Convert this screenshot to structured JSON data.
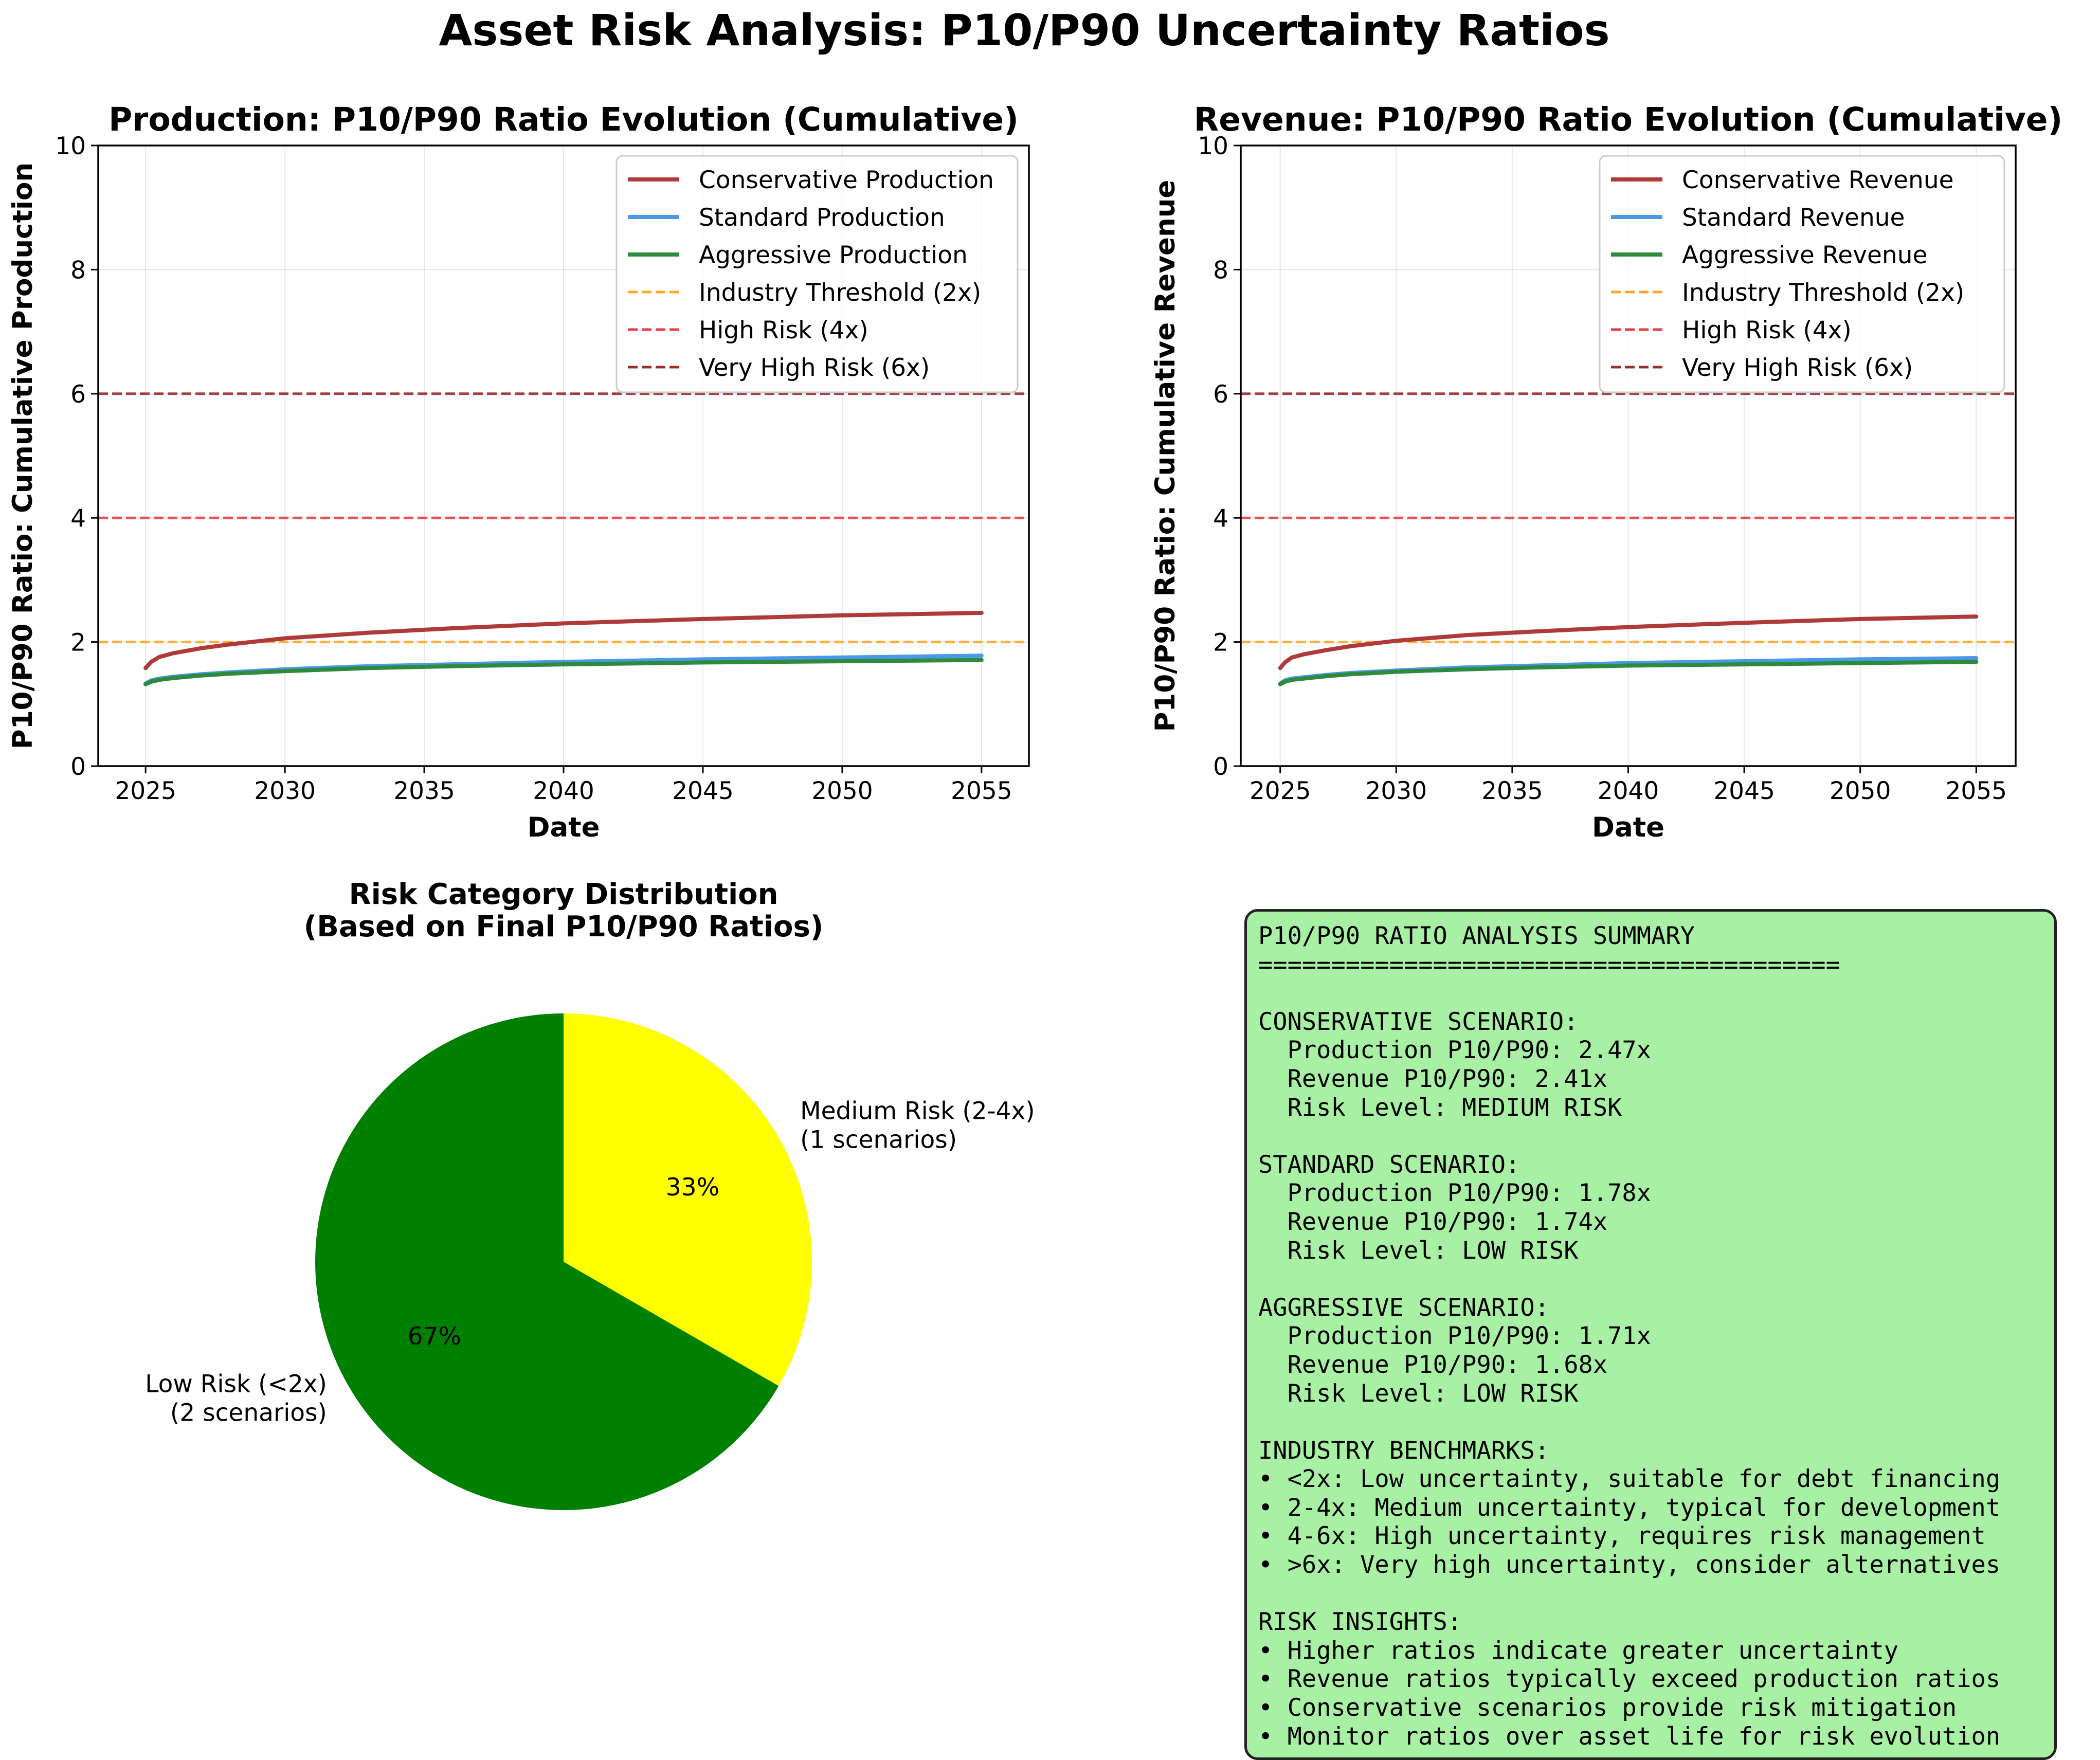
{
  "figure_title": "Asset Risk Analysis: P10/P90 Uncertainty Ratios",
  "chart_data": [
    {
      "type": "line",
      "title": "Production: P10/P90 Ratio Evolution (Cumulative)",
      "xlabel": "Date",
      "ylabel": "P10/P90 Ratio: Cumulative Production",
      "xlim": [
        2023.3,
        2056.7
      ],
      "ylim": [
        0,
        10
      ],
      "xticks": [
        2025,
        2030,
        2035,
        2040,
        2045,
        2050,
        2055
      ],
      "yticks": [
        0,
        2,
        4,
        6,
        8,
        10
      ],
      "grid": true,
      "legend_position": "top-right",
      "x": [
        2025.0,
        2025.2,
        2025.5,
        2026.0,
        2027.0,
        2028.0,
        2030.0,
        2033.0,
        2036.0,
        2040.0,
        2045.0,
        2050.0,
        2055.0
      ],
      "series": [
        {
          "name": "Conservative Production",
          "color": "#b03a3a",
          "values": [
            1.58,
            1.68,
            1.76,
            1.82,
            1.9,
            1.96,
            2.06,
            2.15,
            2.22,
            2.3,
            2.37,
            2.43,
            2.47
          ]
        },
        {
          "name": "Standard Production",
          "color": "#4a98e8",
          "values": [
            1.33,
            1.38,
            1.41,
            1.44,
            1.48,
            1.51,
            1.56,
            1.61,
            1.64,
            1.68,
            1.72,
            1.75,
            1.78
          ]
        },
        {
          "name": "Aggressive Production",
          "color": "#2e8b3e",
          "values": [
            1.32,
            1.36,
            1.39,
            1.42,
            1.46,
            1.49,
            1.53,
            1.58,
            1.61,
            1.64,
            1.67,
            1.69,
            1.71
          ]
        }
      ],
      "hlines": [
        {
          "name": "Industry Threshold (2x)",
          "y": 2,
          "color": "#ffa726"
        },
        {
          "name": "High Risk (4x)",
          "y": 4,
          "color": "#e84040"
        },
        {
          "name": "Very High Risk (6x)",
          "y": 6,
          "color": "#9b2c2c"
        }
      ]
    },
    {
      "type": "line",
      "title": "Revenue: P10/P90 Ratio Evolution (Cumulative)",
      "xlabel": "Date",
      "ylabel": "P10/P90 Ratio: Cumulative Revenue",
      "xlim": [
        2023.3,
        2056.7
      ],
      "ylim": [
        0,
        10
      ],
      "xticks": [
        2025,
        2030,
        2035,
        2040,
        2045,
        2050,
        2055
      ],
      "yticks": [
        0,
        2,
        4,
        6,
        8,
        10
      ],
      "grid": true,
      "legend_position": "top-right",
      "x": [
        2025.0,
        2025.2,
        2025.5,
        2026.0,
        2027.0,
        2028.0,
        2030.0,
        2033.0,
        2036.0,
        2040.0,
        2045.0,
        2050.0,
        2055.0
      ],
      "series": [
        {
          "name": "Conservative Revenue",
          "color": "#b03a3a",
          "values": [
            1.58,
            1.67,
            1.75,
            1.8,
            1.87,
            1.93,
            2.02,
            2.11,
            2.17,
            2.24,
            2.31,
            2.37,
            2.41
          ]
        },
        {
          "name": "Standard Revenue",
          "color": "#4a98e8",
          "values": [
            1.33,
            1.38,
            1.41,
            1.43,
            1.47,
            1.5,
            1.54,
            1.59,
            1.62,
            1.66,
            1.69,
            1.72,
            1.74
          ]
        },
        {
          "name": "Aggressive Revenue",
          "color": "#2e8b3e",
          "values": [
            1.32,
            1.36,
            1.39,
            1.41,
            1.45,
            1.48,
            1.52,
            1.56,
            1.59,
            1.62,
            1.64,
            1.66,
            1.68
          ]
        }
      ],
      "hlines": [
        {
          "name": "Industry Threshold (2x)",
          "y": 2,
          "color": "#ffa726"
        },
        {
          "name": "High Risk (4x)",
          "y": 4,
          "color": "#e84040"
        },
        {
          "name": "Very High Risk (6x)",
          "y": 6,
          "color": "#9b2c2c"
        }
      ]
    },
    {
      "type": "pie",
      "title_lines": [
        "Risk Category Distribution",
        "(Based on Final P10/P90 Ratios)"
      ],
      "slices": [
        {
          "name": "Medium Risk (2-4x)",
          "sub": "(1 scenarios)",
          "value": 1,
          "pct": "33%",
          "color": "#ffff00"
        },
        {
          "name": "Low Risk (<2x)",
          "sub": "(2 scenarios)",
          "value": 2,
          "pct": "67%",
          "color": "#008000"
        }
      ]
    }
  ],
  "summary": {
    "lines": [
      "P10/P90 RATIO ANALYSIS SUMMARY",
      "========================================",
      "",
      "CONSERVATIVE SCENARIO:",
      "  Production P10/P90: 2.47x",
      "  Revenue P10/P90: 2.41x",
      "  Risk Level: MEDIUM RISK",
      "",
      "STANDARD SCENARIO:",
      "  Production P10/P90: 1.78x",
      "  Revenue P10/P90: 1.74x",
      "  Risk Level: LOW RISK",
      "",
      "AGGRESSIVE SCENARIO:",
      "  Production P10/P90: 1.71x",
      "  Revenue P10/P90: 1.68x",
      "  Risk Level: LOW RISK",
      "",
      "INDUSTRY BENCHMARKS:",
      "• <2x: Low uncertainty, suitable for debt financing",
      "• 2-4x: Medium uncertainty, typical for development",
      "• 4-6x: High uncertainty, requires risk management",
      "• >6x: Very high uncertainty, consider alternatives",
      "",
      "RISK INSIGHTS:",
      "• Higher ratios indicate greater uncertainty",
      "• Revenue ratios typically exceed production ratios",
      "• Conservative scenarios provide risk mitigation",
      "• Monitor ratios over asset life for risk evolution"
    ]
  }
}
